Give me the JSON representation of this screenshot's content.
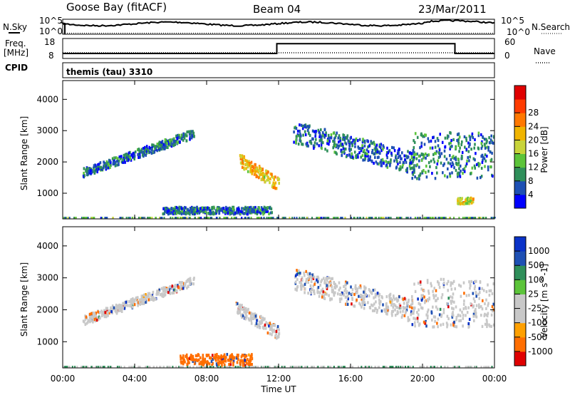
{
  "header": {
    "station": "Goose Bay (fitACF)",
    "beam": "Beam 04",
    "date": "23/Mar/2011"
  },
  "strip_labels": {
    "nsky": "N.Sky",
    "nsky_top": "10^5",
    "nsky_bottom": "10^0",
    "nsearch": "N.Search",
    "nsearch_top": "10^5",
    "nsearch_bottom": "10^0",
    "freq": "Freq.",
    "freq_unit": "[MHz]",
    "freq_top": "18",
    "freq_bottom": "8",
    "nave": "Nave",
    "nave_top": "60",
    "nave_bottom": "0",
    "cpid": "CPID",
    "cpid_text": "themis (tau) 3310"
  },
  "colors": {
    "grey": "#c8c8c8",
    "power_scale": [
      "#0000ff",
      "#1e50b4",
      "#2f8f5a",
      "#5cc43a",
      "#c8d43a",
      "#f0b400",
      "#ff7800",
      "#ff3c00",
      "#e00000"
    ],
    "velocity_scale": [
      "#0a32c8",
      "#1e50b4",
      "#2f8f5a",
      "#5cc43a",
      "#c8c8c8",
      "#c8c8c8",
      "#ffa000",
      "#ff6e00",
      "#e00000"
    ]
  },
  "chart_data": [
    {
      "type": "heatmap",
      "title": "",
      "xlabel": "",
      "ylabel": "Slant Range [km]",
      "xlim": [
        "00:00",
        "24:00"
      ],
      "ylim": [
        180,
        4600
      ],
      "x_ticks": [
        "00:00",
        "04:00",
        "08:00",
        "12:00",
        "16:00",
        "20:00",
        "00:00"
      ],
      "y_ticks": [
        1000,
        2000,
        3000,
        4000
      ],
      "colorbar_label": "Power [dB]",
      "colorbar_ticks": [
        "4",
        "8",
        "12",
        "16",
        "20",
        "24",
        "28"
      ],
      "colorbar_range": [
        0,
        30
      ],
      "regions": [
        {
          "name": "arc",
          "t_start": 1.1,
          "t_end": 7.3,
          "range_start": 1700,
          "range_end": 2950,
          "thickness": 140,
          "typical_power": 6
        },
        {
          "name": "low-range band",
          "t_start": 5.5,
          "t_end": 11.6,
          "range_start": 380,
          "range_end": 600,
          "typical_power": 6
        },
        {
          "name": "strong patch",
          "t_start": 9.8,
          "t_end": 12.0,
          "range_start": 1300,
          "range_end": 2300,
          "typical_power": 18
        },
        {
          "name": "evening band",
          "t_start": 12.8,
          "t_end": 19.5,
          "range_start": 3000,
          "range_end": 2000,
          "typical_power": 6
        },
        {
          "name": "late cluster",
          "t_start": 19.3,
          "t_end": 24.0,
          "range_start": 1500,
          "range_end": 3000,
          "typical_power": 7
        },
        {
          "name": "late low patch",
          "t_start": 21.9,
          "t_end": 22.8,
          "range_start": 700,
          "range_end": 900,
          "typical_power": 16
        }
      ]
    },
    {
      "type": "heatmap",
      "title": "",
      "xlabel": "Time UT",
      "ylabel": "Slant Range [km]",
      "xlim": [
        "00:00",
        "24:00"
      ],
      "ylim": [
        180,
        4600
      ],
      "x_ticks": [
        "00:00",
        "04:00",
        "08:00",
        "12:00",
        "16:00",
        "20:00",
        "00:00"
      ],
      "y_ticks": [
        1000,
        2000,
        3000,
        4000
      ],
      "colorbar_label": "Velocity [m s^-1]",
      "colorbar_ticks": [
        "1000",
        "500",
        "100",
        "25",
        "-25",
        "-100",
        "-500",
        "-1000"
      ],
      "regions": [
        {
          "name": "arc",
          "t_start": 1.1,
          "t_end": 7.3,
          "range_start": 1700,
          "range_end": 2950,
          "thickness": 140,
          "typical_velocity": 0
        },
        {
          "name": "low-range band",
          "t_start": 6.5,
          "t_end": 10.5,
          "range_start": 300,
          "range_end": 650,
          "typical_velocity": -150
        },
        {
          "name": "ground patch",
          "t_start": 9.6,
          "t_end": 12.0,
          "range_start": 1300,
          "range_end": 2400,
          "typical_velocity": 0
        },
        {
          "name": "evening band",
          "t_start": 12.8,
          "t_end": 19.5,
          "range_start": 3000,
          "range_end": 2000,
          "typical_velocity": 0
        },
        {
          "name": "late cluster",
          "t_start": 19.3,
          "t_end": 24.0,
          "range_start": 1500,
          "range_end": 3000,
          "typical_velocity": 0
        }
      ]
    },
    {
      "type": "line",
      "title": "",
      "series": [
        {
          "name": "N.Sky",
          "style": "solid"
        },
        {
          "name": "N.Search",
          "style": "dotted"
        }
      ]
    },
    {
      "type": "line",
      "title": "",
      "series": [
        {
          "name": "Freq.",
          "style": "solid",
          "segments": [
            {
              "t_start": 0.0,
              "t_end": 11.9,
              "value": 10.5
            },
            {
              "t_start": 11.9,
              "t_end": 21.8,
              "value": 15.4
            },
            {
              "t_start": 21.8,
              "t_end": 24.0,
              "value": 10.5
            }
          ]
        },
        {
          "name": "Nave",
          "style": "dotted"
        }
      ]
    }
  ]
}
